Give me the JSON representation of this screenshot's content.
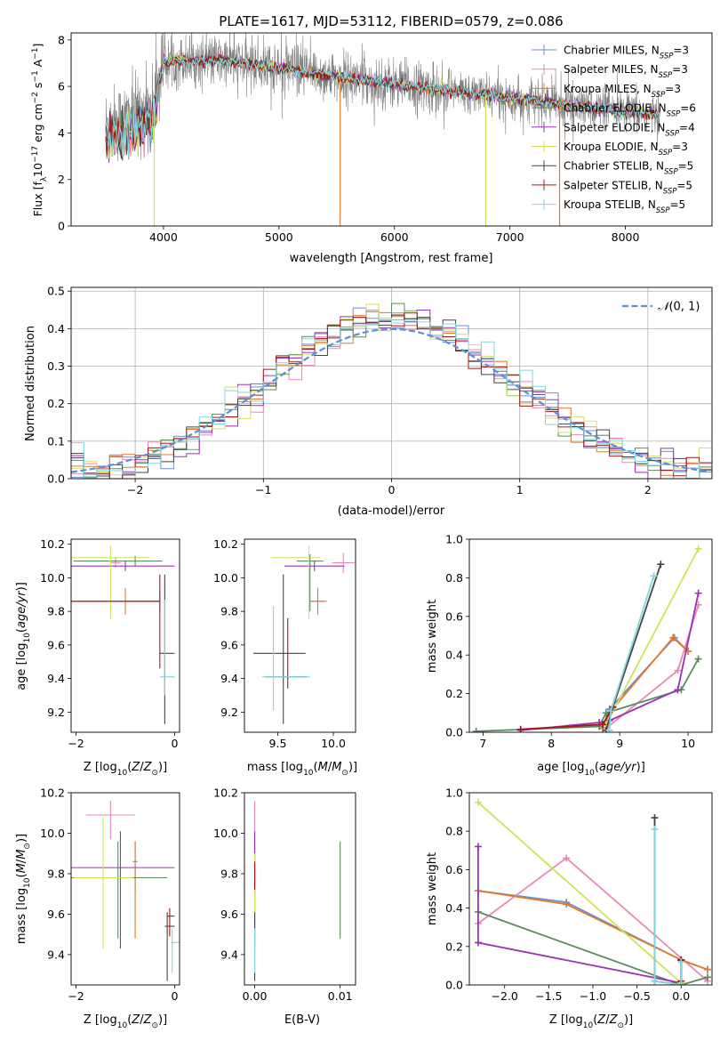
{
  "figure": {
    "title": "PLATE=1617, MJD=53112, FIBERID=0579, z=0.086"
  },
  "series_styles": [
    {
      "name": "Chabrier MILES, N_SSP=3",
      "label": "Chabrier MILES, N",
      "sub": "SSP",
      "tail": "=3",
      "color": "#6b8fd6"
    },
    {
      "name": "Salpeter MILES, N_SSP=3",
      "label": "Salpeter MILES, N",
      "sub": "SSP",
      "tail": "=3",
      "color": "#e889b6"
    },
    {
      "name": "Kroupa MILES, N_SSP=3",
      "label": "Kroupa MILES, N",
      "sub": "SSP",
      "tail": "=3",
      "color": "#e07b2e"
    },
    {
      "name": "Chabrier ELODIE, N_SSP=6",
      "label": "Chabrier ELODIE, N",
      "sub": "SSP",
      "tail": "=6",
      "color": "#5a8a5e"
    },
    {
      "name": "Salpeter ELODIE, N_SSP=4",
      "label": "Salpeter ELODIE, N",
      "sub": "SSP",
      "tail": "=4",
      "color": "#9b30b8"
    },
    {
      "name": "Kroupa ELODIE, N_SSP=3",
      "label": "Kroupa ELODIE, N",
      "sub": "SSP",
      "tail": "=3",
      "color": "#cfe35a"
    },
    {
      "name": "Chabrier STELIB, N_SSP=5",
      "label": "Chabrier STELIB, N",
      "sub": "SSP",
      "tail": "=5",
      "color": "#444444"
    },
    {
      "name": "Salpeter STELIB, N_SSP=5",
      "label": "Salpeter STELIB, N",
      "sub": "SSP",
      "tail": "=5",
      "color": "#a01818"
    },
    {
      "name": "Kroupa STELIB, N_SSP=5",
      "label": "Kroupa STELIB, N",
      "sub": "SSP",
      "tail": "=5",
      "color": "#7fd7e0"
    }
  ],
  "chart_data": [
    {
      "id": "spectrum",
      "type": "line",
      "title": "PLATE=1617, MJD=53112, FIBERID=0579, z=0.086",
      "xlabel": "wavelength [Angstrom, rest frame]",
      "ylabel": "Flux [f_λ 10^-17 erg cm^-2 s^-1 A^-1]",
      "xlim": [
        3200,
        8750
      ],
      "ylim": [
        0,
        8.3
      ],
      "xticks": [
        4000,
        5000,
        6000,
        7000,
        8000
      ],
      "yticks": [
        0,
        2,
        4,
        6,
        8
      ],
      "data_color": "#808080",
      "continuum_x": [
        3500,
        3700,
        3900,
        4000,
        4100,
        4500,
        5000,
        5500,
        6000,
        6500,
        7000,
        7500,
        8000,
        8300
      ],
      "continuum_y": [
        4.3,
        4.6,
        5.1,
        7.0,
        7.1,
        7.1,
        6.8,
        6.4,
        6.1,
        5.8,
        5.5,
        5.2,
        4.9,
        4.8
      ],
      "grid": false
    },
    {
      "id": "residual_histogram",
      "type": "line",
      "xlabel": "(data-model)/error",
      "ylabel": "Normed distribution",
      "xlim": [
        -2.5,
        2.5
      ],
      "ylim": [
        0,
        0.51
      ],
      "xticks": [
        -2,
        -1,
        0,
        1,
        2
      ],
      "yticks": [
        0.0,
        0.1,
        0.2,
        0.3,
        0.4,
        0.5
      ],
      "legend": "N(0,1)",
      "legend_loc": "upper right",
      "gaussian_mean": 0,
      "gaussian_sigma": 1,
      "grid": true
    },
    {
      "id": "age_vs_Z",
      "type": "scatter",
      "xlabel": "Z [log10(Z/Z_sun)]",
      "ylabel": "age [log10(age/yr)]",
      "xlim": [
        -2.1,
        0.1
      ],
      "ylim": [
        9.08,
        10.23
      ],
      "xticks": [
        -2,
        0
      ],
      "yticks": [
        9.2,
        9.4,
        9.6,
        9.8,
        10.0,
        10.2
      ],
      "points": [
        {
          "s": 0,
          "x": -0.3,
          "y": 9.86,
          "xerr": [
            1.75,
            0.0
          ],
          "yerr": [
            0.06,
            0.06
          ]
        },
        {
          "s": 1,
          "x": -1.2,
          "y": 10.09,
          "xerr": [
            0.1,
            0.1
          ],
          "yerr": [
            0.03,
            0.03
          ]
        },
        {
          "s": 2,
          "x": -1.0,
          "y": 9.86,
          "xerr": [
            1.3,
            0.7
          ],
          "yerr": [
            0.08,
            0.08
          ]
        },
        {
          "s": 3,
          "x": -0.8,
          "y": 10.1,
          "xerr": [
            1.25,
            0.55
          ],
          "yerr": [
            0.03,
            0.03
          ]
        },
        {
          "s": 4,
          "x": -1.0,
          "y": 10.07,
          "xerr": [
            1.2,
            1.0
          ],
          "yerr": [
            0.03,
            0.03
          ]
        },
        {
          "s": 5,
          "x": -1.3,
          "y": 10.12,
          "xerr": [
            0.8,
            0.8
          ],
          "yerr": [
            0.37,
            0.07
          ]
        },
        {
          "s": 6,
          "x": -0.2,
          "y": 9.55,
          "xerr": [
            0.1,
            0.2
          ],
          "yerr": [
            0.42,
            0.47
          ]
        },
        {
          "s": 7,
          "x": -0.3,
          "y": 9.86,
          "xerr": [
            1.8,
            0.0
          ],
          "yerr": [
            0.4,
            0.16
          ]
        },
        {
          "s": 8,
          "x": -0.2,
          "y": 9.41,
          "xerr": [
            0.1,
            0.2
          ],
          "yerr": [
            0.11,
            0.46
          ]
        }
      ]
    },
    {
      "id": "age_vs_mass",
      "type": "scatter",
      "xlabel": "mass [log10(M/M_sun)]",
      "ylabel": "",
      "xlim": [
        9.2,
        10.2
      ],
      "ylim": [
        9.08,
        10.23
      ],
      "xticks": [
        9.5,
        10.0
      ],
      "yticks": [
        9.2,
        9.4,
        9.6,
        9.8,
        10.0,
        10.2
      ],
      "points": [
        {
          "s": 0,
          "x": 9.86,
          "y": 9.86,
          "xerr": [
            0.06,
            0.06
          ],
          "yerr": [
            0.02,
            0.02
          ]
        },
        {
          "s": 1,
          "x": 10.09,
          "y": 10.09,
          "xerr": [
            0.1,
            0.1
          ],
          "yerr": [
            0.06,
            0.06
          ]
        },
        {
          "s": 2,
          "x": 9.86,
          "y": 9.86,
          "xerr": [
            0.08,
            0.08
          ],
          "yerr": [
            0.08,
            0.08
          ]
        },
        {
          "s": 3,
          "x": 9.79,
          "y": 10.1,
          "xerr": [
            0.12,
            0.12
          ],
          "yerr": [
            0.3,
            0.04
          ]
        },
        {
          "s": 4,
          "x": 9.83,
          "y": 10.07,
          "xerr": [
            0.27,
            0.27
          ],
          "yerr": [
            0.03,
            0.03
          ]
        },
        {
          "s": 5,
          "x": 9.78,
          "y": 10.12,
          "xerr": [
            0.34,
            0.1
          ],
          "yerr": [
            0.37,
            0.07
          ]
        },
        {
          "s": 6,
          "x": 9.55,
          "y": 9.55,
          "xerr": [
            0.27,
            0.2
          ],
          "yerr": [
            0.42,
            0.47
          ]
        },
        {
          "s": 7,
          "x": 9.59,
          "y": 9.41,
          "xerr": [
            0.2,
            0.17
          ],
          "yerr": [
            0.07,
            0.35
          ]
        },
        {
          "s": 8,
          "x": 9.46,
          "y": 9.41,
          "xerr": [
            0.1,
            0.33
          ],
          "yerr": [
            0.2,
            0.42
          ]
        }
      ]
    },
    {
      "id": "massweight_vs_age",
      "type": "line",
      "xlabel": "age [log10(age/yr)]",
      "ylabel": "mass weight",
      "xlim": [
        6.8,
        10.35
      ],
      "ylim": [
        0,
        1.0
      ],
      "xticks": [
        7,
        8,
        9,
        10
      ],
      "yticks": [
        0.0,
        0.2,
        0.4,
        0.6,
        0.8,
        1.0
      ],
      "series": [
        {
          "s": 0,
          "x": [
            8.75,
            8.85,
            9.8,
            10.0
          ],
          "y": [
            0.02,
            0.12,
            0.49,
            0.42
          ]
        },
        {
          "s": 1,
          "x": [
            8.8,
            9.85,
            10.15
          ],
          "y": [
            0.02,
            0.32,
            0.66
          ]
        },
        {
          "s": 2,
          "x": [
            8.75,
            8.85,
            9.78,
            10.0
          ],
          "y": [
            0.02,
            0.1,
            0.49,
            0.42
          ]
        },
        {
          "s": 3,
          "x": [
            6.9,
            8.7,
            8.8,
            9.9,
            10.15
          ],
          "y": [
            0.005,
            0.03,
            0.1,
            0.22,
            0.38
          ]
        },
        {
          "s": 4,
          "x": [
            7.55,
            8.7,
            8.85,
            9.85,
            10.15
          ],
          "y": [
            0.01,
            0.05,
            0.06,
            0.22,
            0.72
          ]
        },
        {
          "s": 5,
          "x": [
            8.8,
            10.15
          ],
          "y": [
            0.04,
            0.95
          ]
        },
        {
          "s": 6,
          "x": [
            8.8,
            8.9,
            9.6
          ],
          "y": [
            0.01,
            0.13,
            0.87
          ]
        },
        {
          "s": 7,
          "x": [
            7.55,
            8.75,
            8.9
          ],
          "y": [
            0.015,
            0.04,
            0.13
          ]
        },
        {
          "s": 8,
          "x": [
            8.85,
            8.87,
            9.5
          ],
          "y": [
            0.01,
            0.11,
            0.81
          ]
        }
      ]
    },
    {
      "id": "mass_vs_Z",
      "type": "scatter",
      "xlabel": "Z [log10(Z/Z_sun)]",
      "ylabel": "mass [log10(M/M_sun)]",
      "xlim": [
        -2.1,
        0.1
      ],
      "ylim": [
        9.25,
        10.2
      ],
      "xticks": [
        -2,
        0
      ],
      "yticks": [
        9.4,
        9.6,
        9.8,
        10.0,
        10.2
      ],
      "points": [
        {
          "s": 0,
          "x": -0.8,
          "y": 9.86,
          "xerr": [
            0.05,
            0.05
          ],
          "yerr": [
            0.15,
            0.1
          ]
        },
        {
          "s": 1,
          "x": -1.3,
          "y": 10.09,
          "xerr": [
            0.5,
            0.5
          ],
          "yerr": [
            0.12,
            0.07
          ]
        },
        {
          "s": 2,
          "x": -0.8,
          "y": 9.78,
          "xerr": [
            0.02,
            0.02
          ],
          "yerr": [
            0.3,
            0.18
          ]
        },
        {
          "s": 3,
          "x": -1.15,
          "y": 9.78,
          "xerr": [
            0.95,
            1.0
          ],
          "yerr": [
            0.3,
            0.18
          ]
        },
        {
          "s": 4,
          "x": -1.1,
          "y": 9.83,
          "xerr": [
            1.0,
            1.1
          ],
          "yerr": [
            0.4,
            0.18
          ]
        },
        {
          "s": 5,
          "x": -1.45,
          "y": 9.78,
          "xerr": [
            0.6,
            0.6
          ],
          "yerr": [
            0.35,
            0.3
          ]
        },
        {
          "s": 6,
          "x": -0.15,
          "y": 9.54,
          "xerr": [
            0.05,
            0.15
          ],
          "yerr": [
            0.27,
            0.07
          ]
        },
        {
          "s": 7,
          "x": -0.1,
          "y": 9.59,
          "xerr": [
            0.05,
            0.1
          ],
          "yerr": [
            0.1,
            0.04
          ]
        },
        {
          "s": 8,
          "x": -0.05,
          "y": 9.46,
          "xerr": [
            0.02,
            0.15
          ],
          "yerr": [
            0.15,
            0.07
          ]
        }
      ]
    },
    {
      "id": "mass_vs_ebv",
      "type": "scatter",
      "xlabel": "E(B-V)",
      "ylabel": "",
      "xlim": [
        -0.0012,
        0.0118
      ],
      "ylim": [
        9.25,
        10.2
      ],
      "xticks": [
        0.0,
        0.01
      ],
      "xticklabels": [
        "0.00",
        "0.01"
      ],
      "yticks": [
        9.4,
        9.6,
        9.8,
        10.0,
        10.2
      ],
      "points": [
        {
          "s": 0,
          "x": 0.0,
          "y": 9.86,
          "xerr": [
            0,
            0
          ],
          "yerr": [
            0.15,
            0.1
          ]
        },
        {
          "s": 1,
          "x": 0.0,
          "y": 10.09,
          "xerr": [
            0,
            0
          ],
          "yerr": [
            0.12,
            0.07
          ]
        },
        {
          "s": 2,
          "x": 0.0,
          "y": 9.78,
          "xerr": [
            0,
            0
          ],
          "yerr": [
            0.3,
            0.18
          ]
        },
        {
          "s": 3,
          "x": 0.01,
          "y": 9.78,
          "xerr": [
            0,
            0
          ],
          "yerr": [
            0.3,
            0.18
          ]
        },
        {
          "s": 4,
          "x": 0.0,
          "y": 9.83,
          "xerr": [
            0,
            0
          ],
          "yerr": [
            0.4,
            0.18
          ]
        },
        {
          "s": 5,
          "x": 0.0,
          "y": 9.78,
          "xerr": [
            0,
            0
          ],
          "yerr": [
            0.35,
            0.12
          ]
        },
        {
          "s": 6,
          "x": 0.0,
          "y": 9.54,
          "xerr": [
            0,
            0
          ],
          "yerr": [
            0.27,
            0.07
          ]
        },
        {
          "s": 7,
          "x": 0.0,
          "y": 9.82,
          "xerr": [
            0,
            0
          ],
          "yerr": [
            0.1,
            0.04
          ]
        },
        {
          "s": 8,
          "x": 0.0,
          "y": 9.46,
          "xerr": [
            0,
            0
          ],
          "yerr": [
            0.15,
            0.07
          ]
        }
      ]
    },
    {
      "id": "massweight_vs_Z",
      "type": "line",
      "xlabel": "Z [log10(Z/Z_sun)]",
      "ylabel": "mass weight",
      "xlim": [
        -2.4,
        0.35
      ],
      "ylim": [
        0,
        1.0
      ],
      "xticks": [
        -2.0,
        -1.5,
        -1.0,
        -0.5,
        0.0
      ],
      "yticks": [
        0.0,
        0.2,
        0.4,
        0.6,
        0.8,
        1.0
      ],
      "series": [
        {
          "s": 0,
          "x": [
            -2.3,
            -1.3,
            0.0,
            0.3
          ],
          "y": [
            0.49,
            0.43,
            0.13,
            0.08
          ]
        },
        {
          "s": 1,
          "x": [
            -2.3,
            -1.3,
            0.3
          ],
          "y": [
            0.32,
            0.66,
            0.02
          ]
        },
        {
          "s": 2,
          "x": [
            -2.3,
            -1.3,
            0.0,
            0.3
          ],
          "y": [
            0.49,
            0.42,
            0.13,
            0.08
          ]
        },
        {
          "s": 3,
          "x": [
            -2.3,
            0.0,
            0.3
          ],
          "y": [
            0.38,
            0.0,
            0.04
          ]
        },
        {
          "s": 4,
          "x": [
            -2.3,
            -2.3,
            0.0
          ],
          "y": [
            0.72,
            0.22,
            0.01
          ]
        },
        {
          "s": 5,
          "x": [
            -2.3,
            0.0
          ],
          "y": [
            0.95,
            0.01
          ]
        },
        {
          "s": 6,
          "x": [
            -0.3,
            -0.3,
            0.0,
            0.0
          ],
          "y": [
            0.87,
            0.02,
            0.0,
            0.13
          ]
        },
        {
          "s": 7,
          "x": [
            0.0,
            0.0
          ],
          "y": [
            0.02,
            0.13
          ]
        },
        {
          "s": 8,
          "x": [
            -0.3,
            -0.3,
            0.0,
            0.0
          ],
          "y": [
            0.81,
            0.02,
            0.0,
            0.12
          ]
        }
      ]
    }
  ]
}
